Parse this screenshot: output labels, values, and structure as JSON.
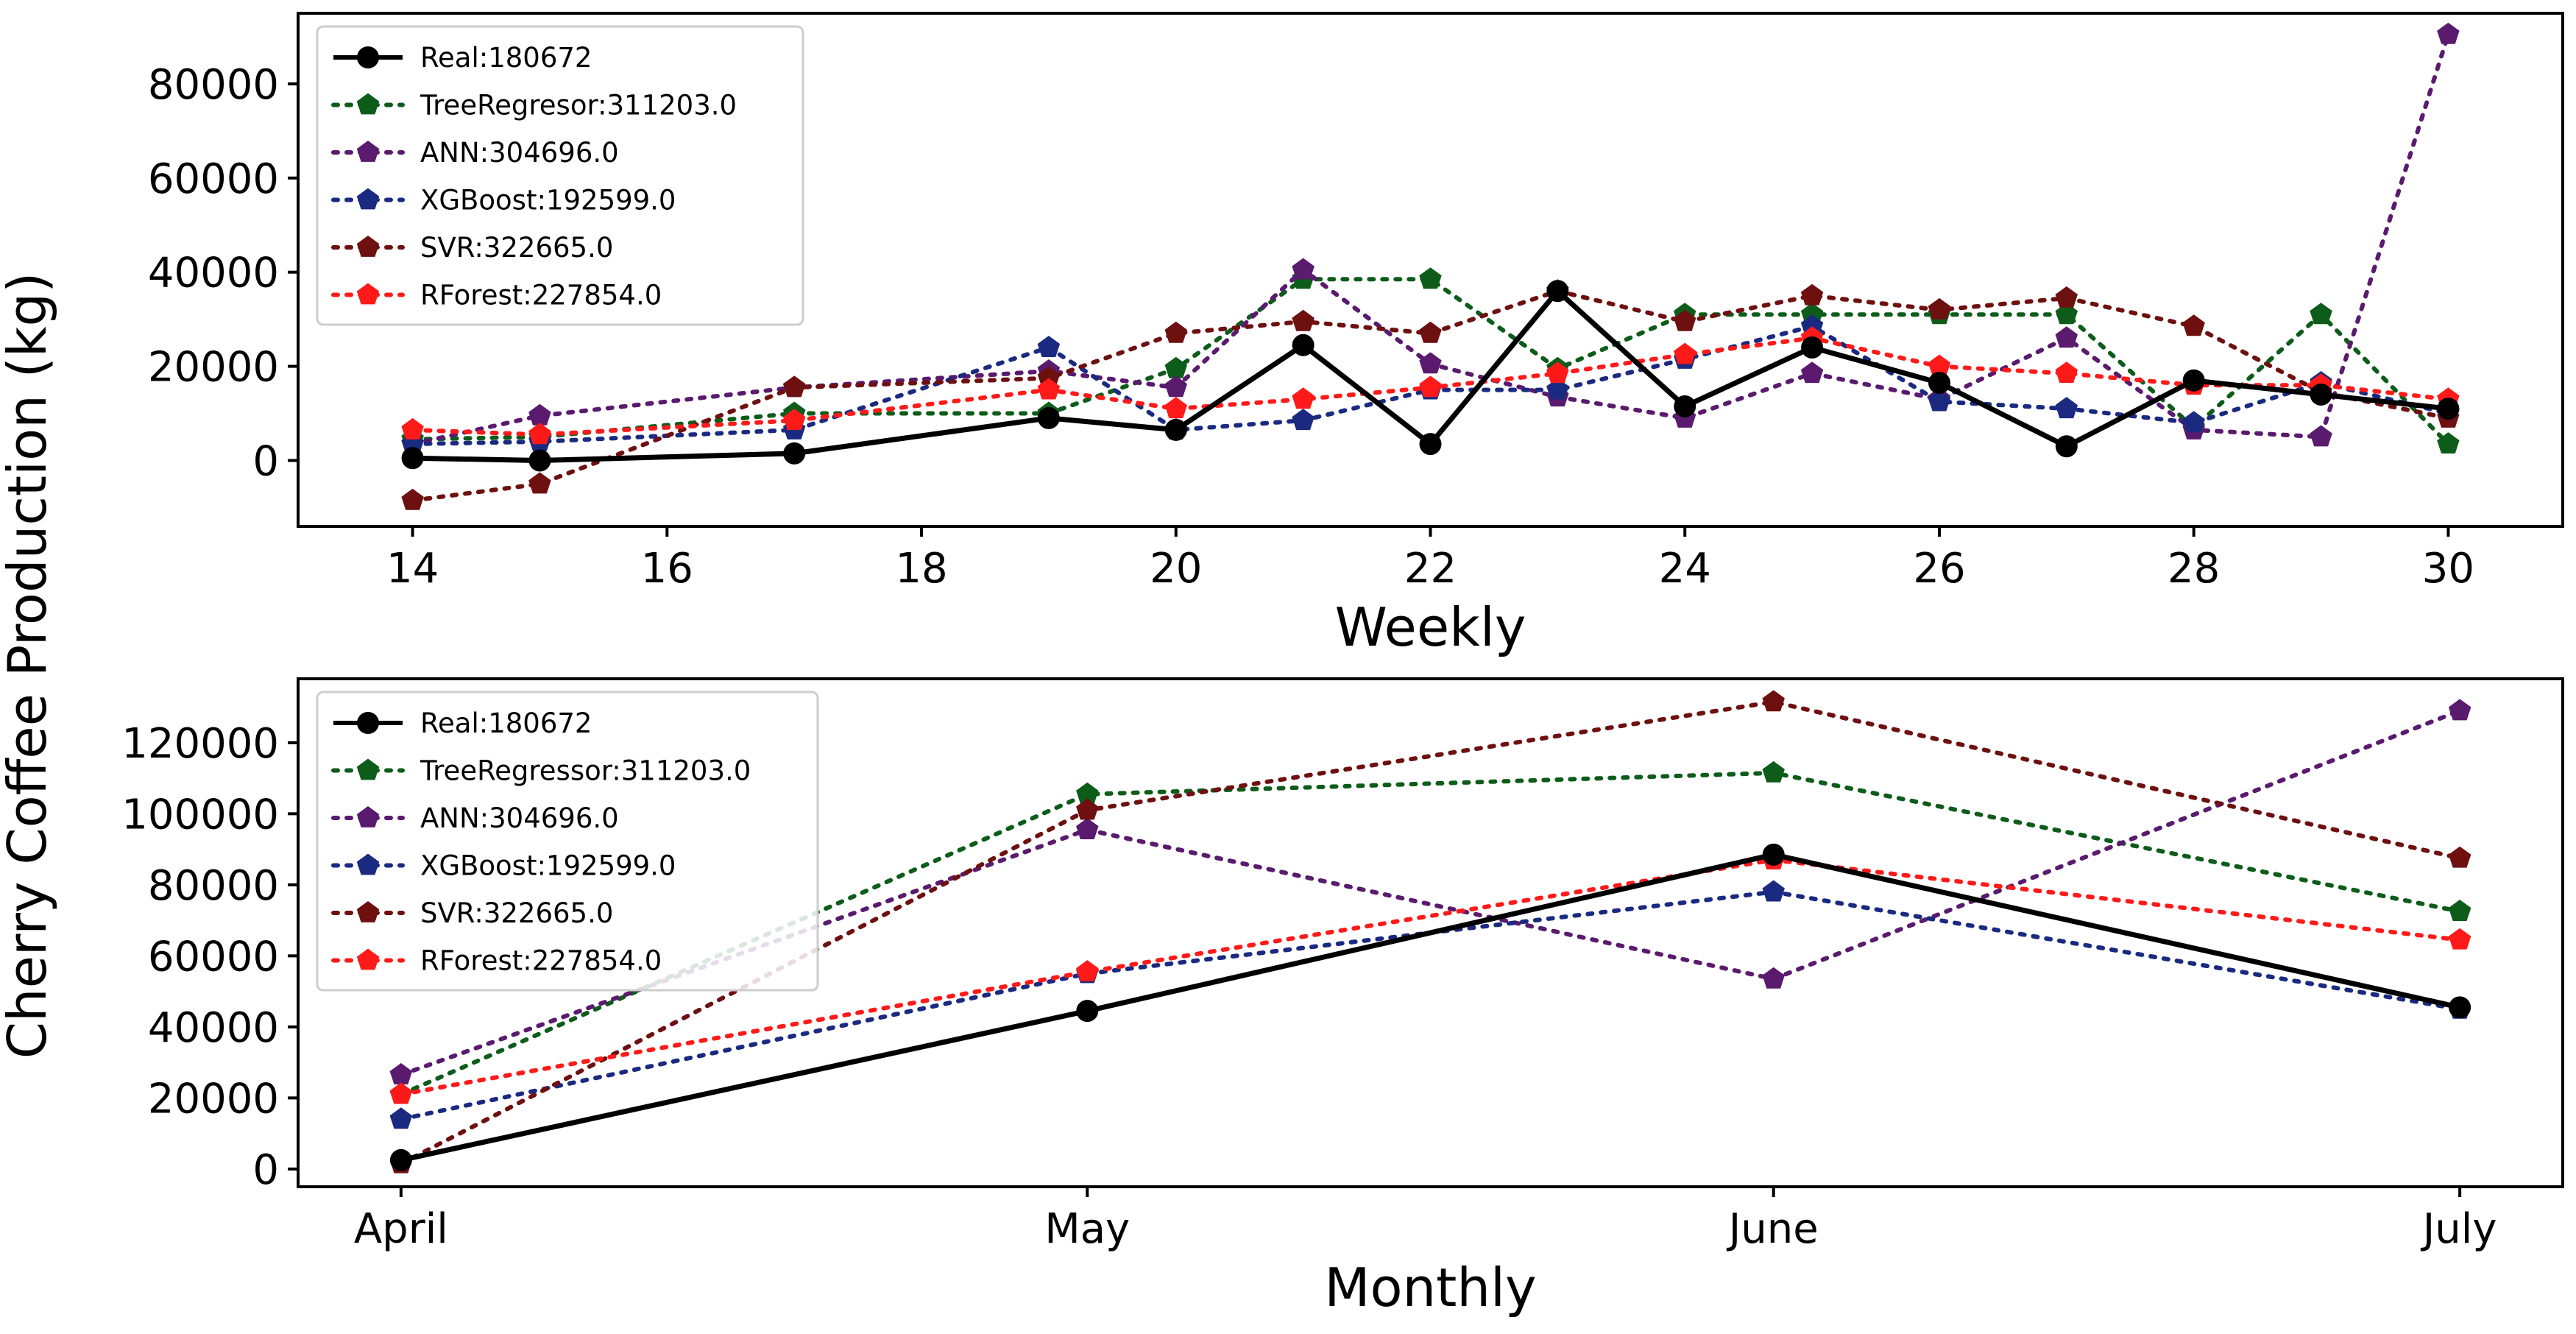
{
  "ylabel": "Cherry Coffee Production (kg)",
  "colors": {
    "real": "#000000",
    "tree": "#0d5c1a",
    "ann": "#5a1a6e",
    "xgb": "#1a2a80",
    "svr": "#6e1010",
    "rforest": "#ff1a1a",
    "frame": "#000000"
  },
  "chart_data": [
    {
      "type": "line",
      "xlabel": "Weekly",
      "ylabel": "Cherry Coffee Production (kg)",
      "x": [
        14,
        15,
        17,
        19,
        20,
        21,
        22,
        23,
        24,
        25,
        26,
        27,
        28,
        29,
        30
      ],
      "xlim": [
        13.1,
        30.9
      ],
      "ylim": [
        -14000,
        95000
      ],
      "xticks": [
        14,
        16,
        18,
        20,
        22,
        24,
        26,
        28,
        30
      ],
      "xtick_labels": [
        "14",
        "16",
        "18",
        "20",
        "22",
        "24",
        "26",
        "28",
        "30"
      ],
      "yticks": [
        0,
        20000,
        40000,
        60000,
        80000
      ],
      "ytick_labels": [
        "0",
        "20000",
        "40000",
        "60000",
        "80000"
      ],
      "legend_position": "top-left",
      "series": [
        {
          "key": "real",
          "name": "Real:180672",
          "style": "solid",
          "marker": "circle",
          "values": [
            500,
            0,
            1500,
            9000,
            6500,
            24500,
            3500,
            36000,
            11500,
            24000,
            16500,
            3000,
            17000,
            14000,
            11000
          ]
        },
        {
          "key": "tree",
          "name": "TreeRegresor:311203.0",
          "style": "dotted",
          "marker": "pentagon",
          "values": [
            4500,
            5000,
            10000,
            10000,
            19500,
            38500,
            38500,
            19500,
            31000,
            31000,
            31000,
            31000,
            7000,
            31000,
            3500
          ]
        },
        {
          "key": "ann",
          "name": "ANN:304696.0",
          "style": "dotted",
          "marker": "pentagon",
          "values": [
            3500,
            9500,
            15500,
            19000,
            15500,
            40500,
            20500,
            13500,
            9000,
            18500,
            13000,
            26000,
            6500,
            5000,
            90500
          ]
        },
        {
          "key": "xgb",
          "name": "XGBoost:192599.0",
          "style": "dotted",
          "marker": "pentagon",
          "values": [
            3500,
            4000,
            6500,
            24000,
            6500,
            8500,
            15000,
            15000,
            21500,
            28500,
            12500,
            11000,
            8000,
            16500,
            10000
          ]
        },
        {
          "key": "svr",
          "name": "SVR:322665.0",
          "style": "dotted",
          "marker": "pentagon",
          "values": [
            -8500,
            -5000,
            15500,
            17500,
            27000,
            29500,
            27000,
            36000,
            29500,
            35000,
            32000,
            34500,
            28500,
            14500,
            9000
          ]
        },
        {
          "key": "rforest",
          "name": "RForest:227854.0",
          "style": "dotted",
          "marker": "pentagon",
          "values": [
            6500,
            5500,
            8500,
            15000,
            11000,
            13000,
            15500,
            18500,
            22500,
            26000,
            20000,
            18500,
            16000,
            16000,
            13000
          ]
        }
      ]
    },
    {
      "type": "line",
      "xlabel": "Monthly",
      "ylabel": "Cherry Coffee Production (kg)",
      "categories": [
        "April",
        "May",
        "June",
        "July"
      ],
      "x": [
        0,
        1,
        2,
        3
      ],
      "xlim": [
        -0.15,
        3.15
      ],
      "ylim": [
        -5000,
        138000
      ],
      "yticks": [
        0,
        20000,
        40000,
        60000,
        80000,
        100000,
        120000
      ],
      "ytick_labels": [
        "0",
        "20000",
        "40000",
        "60000",
        "80000",
        "100000",
        "120000"
      ],
      "legend_position": "top-left",
      "series": [
        {
          "key": "real",
          "name": "Real:180672",
          "style": "solid",
          "marker": "circle",
          "values": [
            2500,
            44500,
            88500,
            45500
          ]
        },
        {
          "key": "tree",
          "name": "TreeRegressor:311203.0",
          "style": "dotted",
          "marker": "pentagon",
          "values": [
            21000,
            105500,
            111500,
            72500
          ]
        },
        {
          "key": "ann",
          "name": "ANN:304696.0",
          "style": "dotted",
          "marker": "pentagon",
          "values": [
            26500,
            95500,
            53500,
            129000
          ]
        },
        {
          "key": "xgb",
          "name": "XGBoost:192599.0",
          "style": "dotted",
          "marker": "pentagon",
          "values": [
            14000,
            55000,
            78000,
            45000
          ]
        },
        {
          "key": "svr",
          "name": "SVR:322665.0",
          "style": "dotted",
          "marker": "pentagon",
          "values": [
            1500,
            101000,
            131500,
            87500
          ]
        },
        {
          "key": "rforest",
          "name": "RForest:227854.0",
          "style": "dotted",
          "marker": "pentagon",
          "values": [
            21000,
            55500,
            87000,
            64500
          ]
        }
      ]
    }
  ]
}
